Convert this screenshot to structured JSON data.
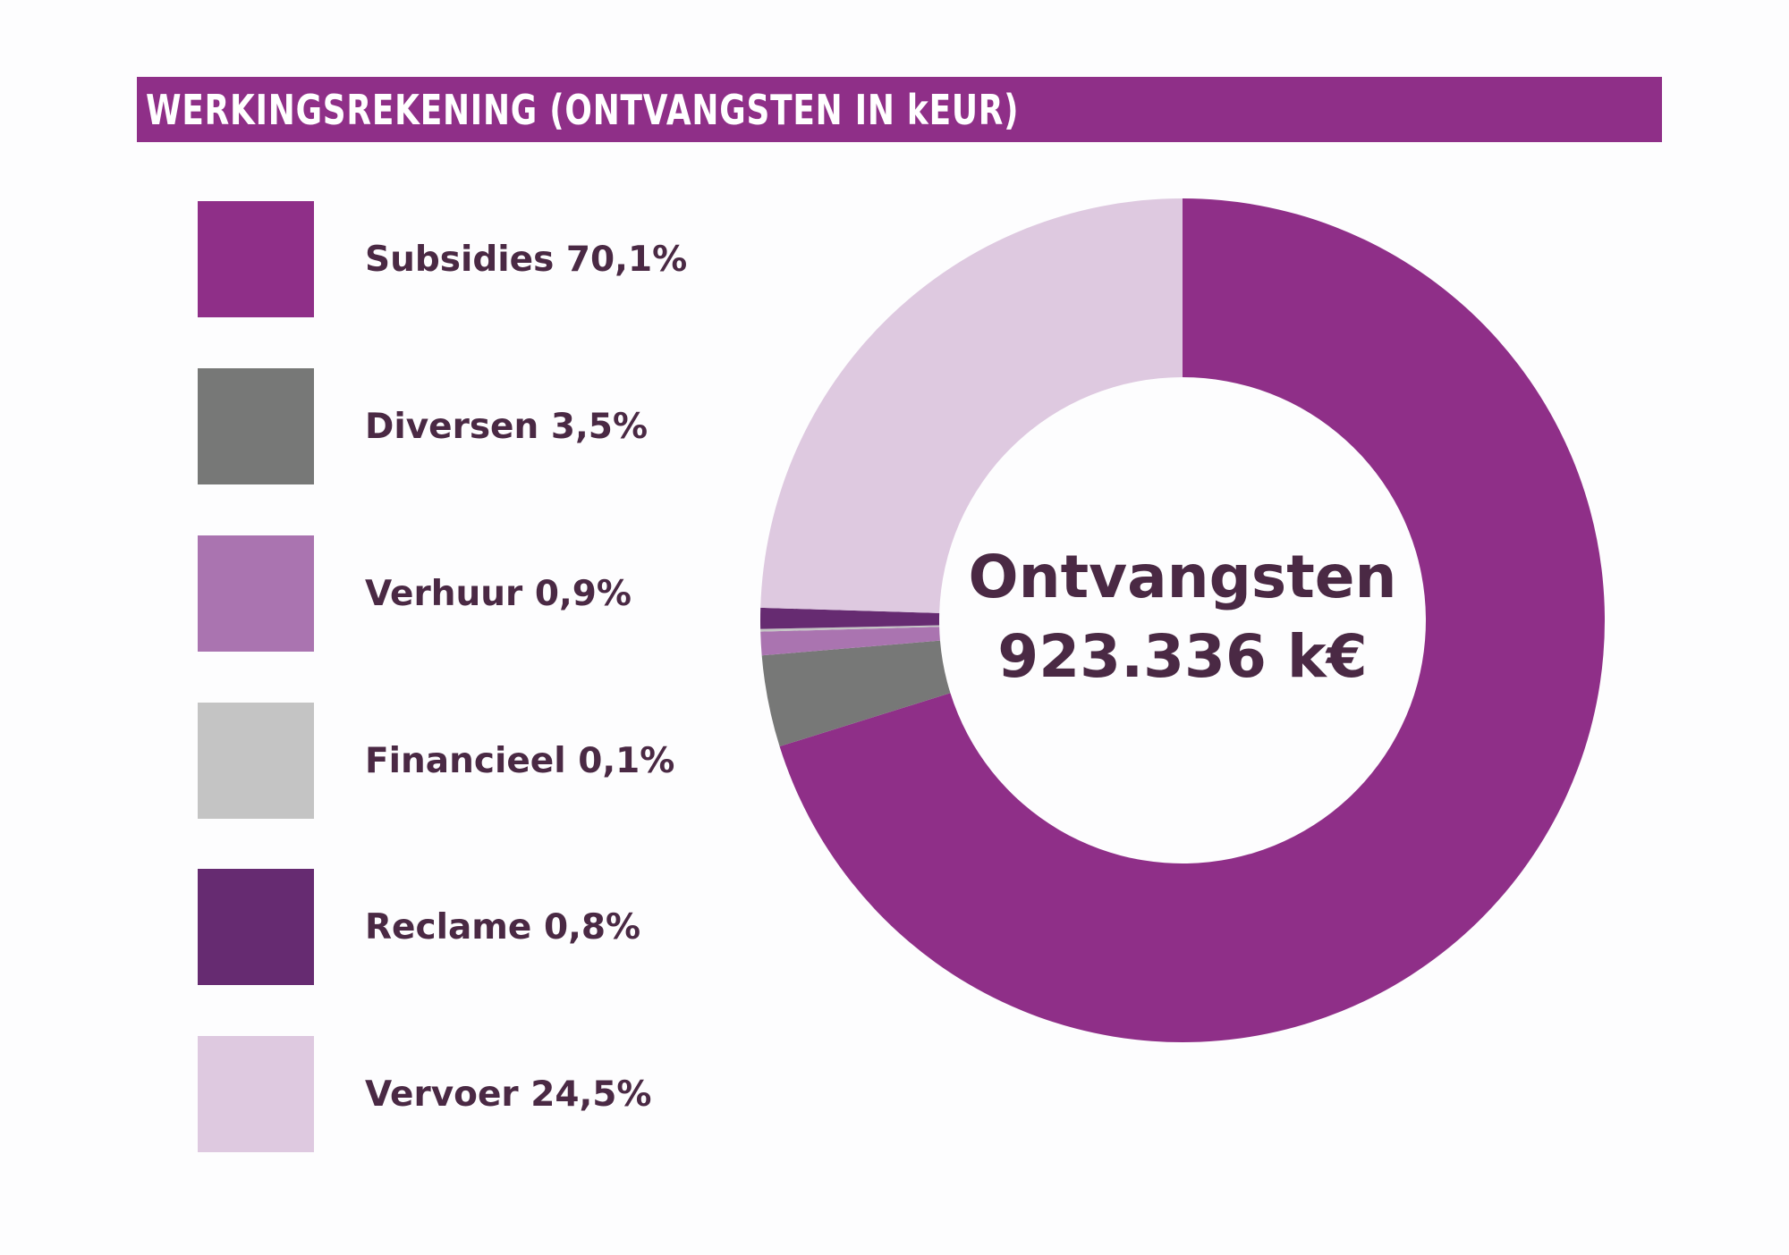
{
  "chart_data": {
    "type": "pie",
    "title": "WERKINGSREKENING (ONTVANGSTEN IN kEUR)",
    "center_label": {
      "line1": "Ontvangsten",
      "line2": "923.336 k€"
    },
    "legend_placement": "left",
    "slices": [
      {
        "label": "Subsidies 70,1%",
        "name": "Subsidies",
        "value": 70.1,
        "color": "#8f2f88"
      },
      {
        "label": "Diversen 3,5%",
        "name": "Diversen",
        "value": 3.5,
        "color": "#777877"
      },
      {
        "label": "Verhuur 0,9%",
        "name": "Verhuur",
        "value": 0.9,
        "color": "#aa74b0"
      },
      {
        "label": "Financieel 0,1%",
        "name": "Financieel",
        "value": 0.1,
        "color": "#c4c4c4"
      },
      {
        "label": "Reclame 0,8%",
        "name": "Reclame",
        "value": 0.8,
        "color": "#662b71"
      },
      {
        "label": "Vervoer 24,5%",
        "name": "Vervoer",
        "value": 24.5,
        "color": "#dec9e0"
      }
    ]
  }
}
